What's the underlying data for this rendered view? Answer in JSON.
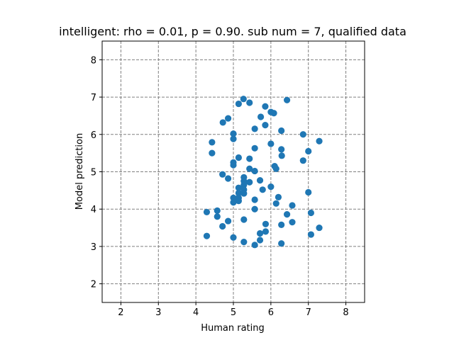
{
  "chart_data": {
    "type": "scatter",
    "title": "intelligent: rho = 0.01, p = 0.90. sub num = 7, qualified data",
    "xlabel": "Human rating",
    "ylabel": "Model prediction",
    "xlim": [
      1.5,
      8.5
    ],
    "ylim": [
      1.5,
      8.5
    ],
    "xticks": [
      "2",
      "3",
      "4",
      "5",
      "6",
      "7",
      "8"
    ],
    "yticks": [
      "2",
      "3",
      "4",
      "5",
      "6",
      "7",
      "8"
    ],
    "grid": true,
    "marker_color": "#1f77b4",
    "x": [
      5.27,
      6.43,
      5.43,
      5.14,
      5.85,
      6.0,
      6.08,
      5.73,
      4.86,
      4.72,
      5.57,
      5.85,
      6.28,
      5.0,
      5.0,
      4.43,
      6.86,
      7.29,
      5.57,
      6.0,
      4.43,
      6.28,
      7.0,
      5.14,
      6.29,
      6.86,
      5.0,
      5.0,
      5.43,
      6.1,
      6.14,
      4.71,
      5.57,
      4.86,
      5.43,
      5.28,
      5.28,
      5.71,
      5.43,
      6.0,
      5.28,
      5.78,
      5.14,
      5.14,
      5.28,
      5.28,
      5.0,
      5.14,
      5.57,
      5.14,
      7.0,
      6.2,
      6.14,
      5.0,
      6.57,
      5.57,
      4.29,
      4.57,
      6.43,
      7.07,
      4.57,
      4.86,
      5.28,
      6.57,
      5.86,
      7.29,
      4.71,
      6.28,
      5.86,
      7.07,
      4.29,
      5.0,
      5.71,
      5.71,
      5.28,
      6.28,
      5.57
    ],
    "y": [
      6.95,
      6.92,
      6.85,
      6.82,
      6.75,
      6.6,
      6.57,
      6.47,
      6.43,
      6.32,
      6.15,
      6.25,
      6.1,
      6.02,
      5.88,
      5.79,
      6.0,
      5.82,
      5.63,
      5.75,
      5.5,
      5.6,
      5.55,
      5.38,
      5.43,
      5.3,
      5.25,
      5.18,
      5.35,
      5.15,
      5.08,
      4.93,
      5.02,
      4.82,
      5.08,
      4.85,
      4.75,
      4.77,
      4.72,
      4.6,
      4.65,
      4.52,
      4.57,
      4.43,
      4.52,
      4.42,
      4.3,
      4.22,
      4.25,
      4.3,
      4.45,
      4.32,
      4.15,
      4.18,
      4.1,
      4.0,
      3.92,
      3.96,
      3.86,
      3.9,
      3.8,
      3.68,
      3.72,
      3.65,
      3.6,
      3.5,
      3.54,
      3.58,
      3.4,
      3.32,
      3.28,
      3.24,
      3.35,
      3.17,
      3.12,
      3.08,
      3.04
    ]
  }
}
